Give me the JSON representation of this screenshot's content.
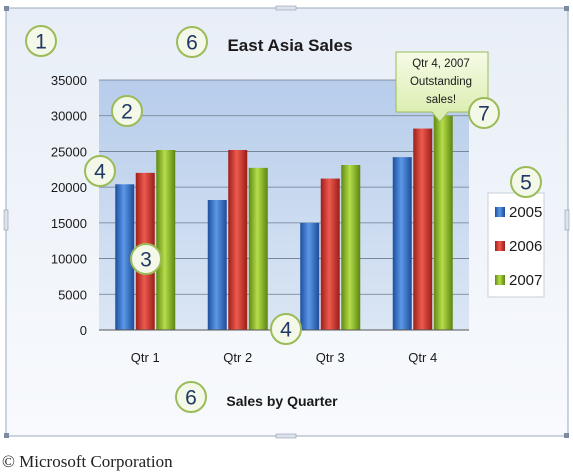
{
  "chart_data": {
    "type": "bar",
    "title": "East Asia Sales",
    "xlabel": "Sales by Quarter",
    "ylabel": "",
    "categories": [
      "Qtr 1",
      "Qtr 2",
      "Qtr 3",
      "Qtr 4"
    ],
    "series": [
      {
        "name": "2005",
        "values": [
          20400,
          18200,
          15000,
          24200
        ]
      },
      {
        "name": "2006",
        "values": [
          22000,
          25200,
          21200,
          28200
        ]
      },
      {
        "name": "2007",
        "values": [
          25200,
          22700,
          23100,
          30000
        ]
      }
    ],
    "ylim": [
      0,
      35000
    ],
    "yticks": [
      "35000",
      "30000",
      "25000",
      "20000",
      "15000",
      "10000",
      "5000",
      "0"
    ],
    "grid": true,
    "legend_position": "right",
    "colors": {
      "2005": "#2e6fce",
      "2006": "#d23a2e",
      "2007": "#8dbb28",
      "plot_area": "#c9d9ef",
      "frame": "#dbe7f5"
    },
    "annotation": {
      "lines": [
        "Qtr 4, 2007",
        "Outstanding",
        "sales!"
      ]
    },
    "callouts": [
      "1",
      "2",
      "3",
      "4",
      "4",
      "5",
      "6",
      "6",
      "7"
    ]
  },
  "footer": "© Microsoft Corporation"
}
